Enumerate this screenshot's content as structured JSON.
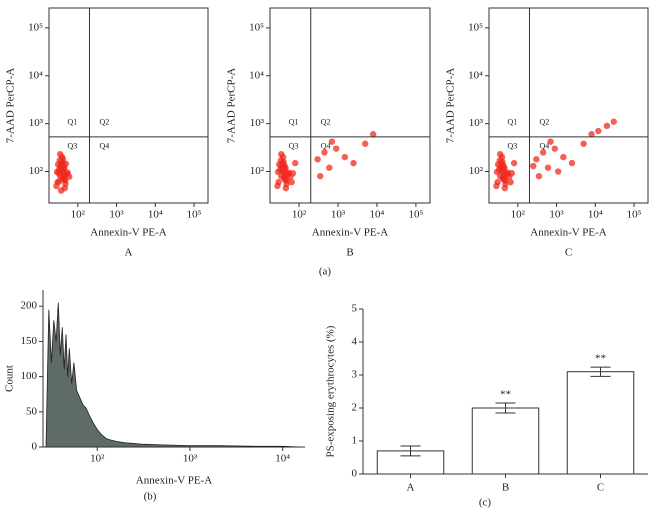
{
  "chart_data": [
    {
      "type": "scatter",
      "label": "A",
      "x_label": "Annexin-V PE-A",
      "y_label": "7-AAD PerCP-A",
      "log_x": true,
      "log_y": true,
      "xlim": [
        18,
        230000
      ],
      "ylim": [
        22,
        260000
      ],
      "xticks": [
        {
          "value": 100,
          "label": "10²"
        },
        {
          "value": 1000,
          "label": "10³"
        },
        {
          "value": 10000,
          "label": "10⁴"
        },
        {
          "value": 100000,
          "label": "10⁵"
        }
      ],
      "yticks": [
        {
          "value": 100,
          "label": "10²"
        },
        {
          "value": 1000,
          "label": "10³"
        },
        {
          "value": 10000,
          "label": "10⁴"
        },
        {
          "value": 100000,
          "label": "10⁵"
        }
      ],
      "x_gate": 200,
      "y_gate": 530,
      "quadrants": [
        "Q1",
        "Q2",
        "Q3",
        "Q4"
      ],
      "color": "#f02a1e",
      "x": [
        30,
        35,
        40,
        45,
        38,
        42,
        50,
        33,
        28,
        36,
        44,
        55,
        39,
        47,
        31,
        41,
        37,
        48,
        34,
        43,
        52,
        29,
        46,
        38,
        40,
        60,
        35,
        45,
        42,
        32,
        37,
        41,
        33,
        49,
        39
      ],
      "y": [
        60,
        80,
        100,
        120,
        150,
        70,
        90,
        110,
        50,
        130,
        85,
        95,
        200,
        65,
        140,
        75,
        105,
        55,
        170,
        115,
        88,
        98,
        45,
        125,
        160,
        78,
        230,
        68,
        135,
        92,
        40,
        185,
        62,
        145,
        102
      ]
    },
    {
      "type": "scatter",
      "label": "B",
      "x_label": "Annexin-V PE-A",
      "y_label": "7-AAD PerCP-A",
      "log_x": true,
      "log_y": true,
      "xlim": [
        18,
        230000
      ],
      "ylim": [
        22,
        260000
      ],
      "xticks": [
        {
          "value": 100,
          "label": "10²"
        },
        {
          "value": 1000,
          "label": "10³"
        },
        {
          "value": 10000,
          "label": "10⁴"
        },
        {
          "value": 100000,
          "label": "10⁵"
        }
      ],
      "yticks": [
        {
          "value": 100,
          "label": "10²"
        },
        {
          "value": 1000,
          "label": "10³"
        },
        {
          "value": 10000,
          "label": "10⁴"
        },
        {
          "value": 100000,
          "label": "10⁵"
        }
      ],
      "x_gate": 200,
      "y_gate": 530,
      "quadrants": [
        "Q1",
        "Q2",
        "Q3",
        "Q4"
      ],
      "color": "#f02a1e",
      "x": [
        30,
        35,
        40,
        45,
        38,
        42,
        50,
        33,
        28,
        36,
        44,
        55,
        39,
        47,
        31,
        41,
        37,
        48,
        34,
        43,
        52,
        29,
        46,
        38,
        40,
        60,
        35,
        45,
        42,
        70,
        80,
        65,
        300,
        450,
        600,
        900,
        1500,
        2500,
        5000,
        8000,
        350,
        700
      ],
      "y": [
        60,
        80,
        100,
        120,
        150,
        70,
        90,
        110,
        50,
        130,
        85,
        95,
        200,
        65,
        140,
        75,
        105,
        55,
        170,
        115,
        88,
        98,
        45,
        125,
        160,
        78,
        230,
        68,
        135,
        92,
        150,
        60,
        180,
        250,
        120,
        300,
        200,
        150,
        380,
        600,
        80,
        420
      ]
    },
    {
      "type": "scatter",
      "label": "C",
      "x_label": "Annexin-V PE-A",
      "y_label": "7-AAD PerCP-A",
      "log_x": true,
      "log_y": true,
      "xlim": [
        18,
        230000
      ],
      "ylim": [
        22,
        260000
      ],
      "xticks": [
        {
          "value": 100,
          "label": "10²"
        },
        {
          "value": 1000,
          "label": "10³"
        },
        {
          "value": 10000,
          "label": "10⁴"
        },
        {
          "value": 100000,
          "label": "10⁵"
        }
      ],
      "yticks": [
        {
          "value": 100,
          "label": "10²"
        },
        {
          "value": 1000,
          "label": "10³"
        },
        {
          "value": 10000,
          "label": "10⁴"
        },
        {
          "value": 100000,
          "label": "10⁵"
        }
      ],
      "x_gate": 200,
      "y_gate": 530,
      "quadrants": [
        "Q1",
        "Q2",
        "Q3",
        "Q4"
      ],
      "color": "#f02a1e",
      "x": [
        30,
        35,
        40,
        45,
        38,
        42,
        50,
        33,
        28,
        36,
        44,
        55,
        39,
        47,
        31,
        41,
        37,
        48,
        34,
        43,
        52,
        29,
        46,
        38,
        40,
        60,
        35,
        45,
        42,
        70,
        80,
        65,
        300,
        450,
        600,
        900,
        1500,
        2500,
        5000,
        8000,
        350,
        700,
        12000,
        20000,
        30000,
        1100,
        250
      ],
      "y": [
        60,
        80,
        100,
        120,
        150,
        70,
        90,
        110,
        50,
        130,
        85,
        95,
        200,
        65,
        140,
        75,
        105,
        55,
        170,
        115,
        88,
        98,
        45,
        125,
        160,
        78,
        230,
        68,
        135,
        92,
        150,
        60,
        180,
        250,
        120,
        300,
        200,
        150,
        380,
        600,
        80,
        420,
        700,
        900,
        1100,
        100,
        130
      ]
    },
    {
      "type": "histogram",
      "x_label": "Annexin-V PE-A",
      "y_label": "Count",
      "log_x": true,
      "xlim": [
        26,
        17400
      ],
      "ylim": [
        0,
        223
      ],
      "xticks": [
        {
          "value": 100,
          "label": "10²"
        },
        {
          "value": 1000,
          "label": "10³"
        },
        {
          "value": 10000,
          "label": "10⁴"
        }
      ],
      "yticks": [
        0,
        50,
        100,
        150,
        200
      ],
      "color": "#5f6b66",
      "x": [
        28,
        30,
        32,
        34,
        36,
        38,
        40,
        42,
        44,
        46,
        48,
        50,
        53,
        56,
        60,
        65,
        70,
        76,
        82,
        90,
        100,
        110,
        125,
        140,
        160,
        200,
        300,
        500,
        1000,
        2000,
        5000,
        10000,
        15000
      ],
      "values": [
        0,
        195,
        120,
        180,
        150,
        205,
        130,
        170,
        110,
        160,
        100,
        140,
        90,
        120,
        80,
        70,
        60,
        55,
        45,
        35,
        25,
        18,
        12,
        10,
        8,
        6,
        4,
        3,
        2,
        2,
        1,
        1,
        0
      ]
    },
    {
      "type": "bar",
      "y_label": "PS-exposing erythrocytes (%)",
      "categories": [
        "A",
        "B",
        "C"
      ],
      "values": [
        0.7,
        2.0,
        3.1
      ],
      "errors": [
        0.15,
        0.15,
        0.14
      ],
      "significance": [
        null,
        "**",
        "**"
      ],
      "ylim": [
        0,
        5
      ],
      "yticks": [
        0,
        1,
        2,
        3,
        4,
        5
      ],
      "color": "#ffffff"
    }
  ],
  "captions": [
    "(a)",
    "(b)",
    "(c)"
  ]
}
